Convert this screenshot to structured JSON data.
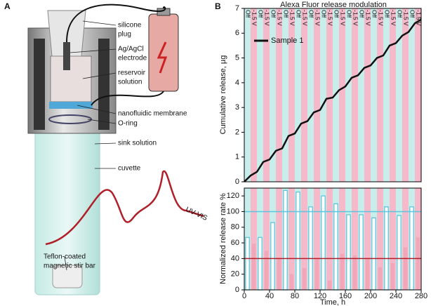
{
  "panel_a": {
    "label": "A",
    "callouts": [
      [
        "silicone",
        "plug"
      ],
      [
        "Ag/AgCl",
        "electrode"
      ],
      [
        "reservoir",
        "solution"
      ],
      [
        "nanofluidic membrane"
      ],
      [
        "O-ring"
      ],
      [
        "sink solution"
      ],
      [
        "cuvette"
      ],
      [
        "Teflon-coated",
        "magnetic stir bar"
      ]
    ],
    "signal_label": "UV-VIS"
  },
  "chart_data": [
    {
      "type": "line",
      "panel_label": "B",
      "title": "Alexa Fluor release modulation",
      "y_label": "Cumulative release, µg",
      "phase_labels": [
        "Off",
        "-1.5 V",
        "Off",
        "-1.5 V",
        "Off",
        "-1.5 V",
        "Off",
        "-1.5 V",
        "Off",
        "-1.5 V",
        "Off",
        "-1.5 V",
        "Off",
        "-1.5 V",
        "Off",
        "-1.5 V",
        "Off",
        "-1.5 V",
        "Off",
        "-1.5 V",
        "Off",
        "-1.5 V",
        "Off",
        "-1.5 V",
        "Off",
        "-1.5 V",
        "Off",
        "-1.5 V"
      ],
      "phase_edges": [
        0,
        10,
        20,
        30,
        40,
        50,
        60,
        70,
        80,
        90,
        100,
        110,
        120,
        130,
        140,
        150,
        160,
        170,
        180,
        190,
        200,
        210,
        220,
        230,
        240,
        250,
        260,
        270,
        280
      ],
      "phase_colors": [
        "#c8eeec",
        "#f5b9c9"
      ],
      "x": [
        0,
        10,
        20,
        30,
        40,
        50,
        60,
        70,
        80,
        90,
        100,
        110,
        120,
        130,
        140,
        150,
        160,
        170,
        180,
        190,
        200,
        210,
        220,
        230,
        240,
        250,
        260,
        270,
        280
      ],
      "series": [
        {
          "name": "Sample 1",
          "color": "#111111",
          "values": [
            0,
            0.25,
            0.4,
            0.8,
            0.9,
            1.25,
            1.35,
            1.85,
            1.95,
            2.35,
            2.45,
            2.8,
            2.9,
            3.35,
            3.4,
            3.7,
            3.85,
            4.2,
            4.3,
            4.6,
            4.7,
            5.0,
            5.1,
            5.5,
            5.6,
            5.9,
            6.05,
            6.4,
            6.55
          ]
        }
      ],
      "xlim": [
        0,
        280
      ],
      "ylim": [
        0,
        7
      ],
      "yticks": [
        0,
        1,
        2,
        3,
        4,
        5,
        6,
        7
      ],
      "legend": "upper left"
    },
    {
      "type": "bar",
      "y_label": "Normalized release rate %",
      "x_label": "Time, h",
      "series": [
        {
          "name": "Off",
          "color": "#5cc6dc",
          "x": [
            5,
            25,
            45,
            65,
            85,
            105,
            125,
            145,
            165,
            185,
            205,
            225,
            245,
            265
          ],
          "values": [
            67,
            67,
            86,
            127,
            125,
            106,
            120,
            110,
            96,
            96,
            92,
            106,
            95,
            106
          ]
        },
        {
          "name": "-1.5 V",
          "color": "#f2a7b9",
          "x": [
            15,
            35,
            55,
            75,
            95,
            115,
            135,
            155,
            175,
            195,
            215,
            235,
            255,
            275
          ],
          "values": [
            59,
            50,
            40,
            20,
            28,
            40,
            12,
            46,
            44,
            40,
            29,
            34,
            54,
            67
          ]
        }
      ],
      "reference_lines": [
        {
          "value": 100,
          "color": "#5cc6dc"
        },
        {
          "value": 40,
          "color": "#b0202a"
        }
      ],
      "xlim": [
        0,
        280
      ],
      "xticks": [
        0,
        40,
        80,
        120,
        160,
        200,
        240,
        280
      ],
      "ylim": [
        0,
        130
      ],
      "yticks": [
        0,
        20,
        40,
        60,
        80,
        100,
        120
      ]
    }
  ]
}
